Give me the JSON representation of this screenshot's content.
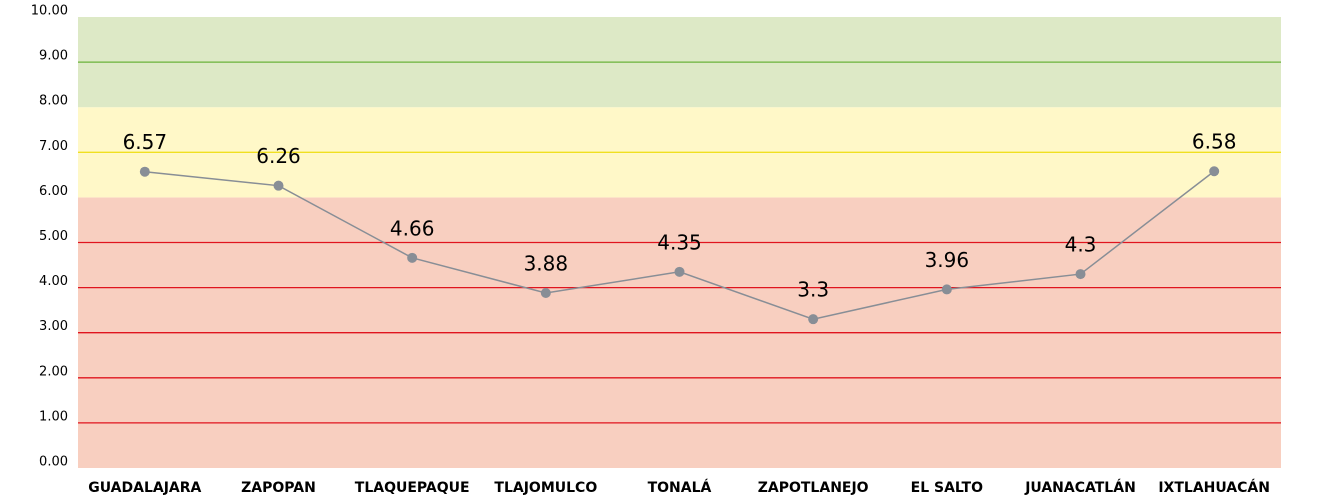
{
  "chart_data": {
    "type": "line",
    "categories": [
      "GUADALAJARA",
      "ZAPOPAN",
      "TLAQUEPAQUE",
      "TLAJOMULCO",
      "TONALÁ",
      "ZAPOTLANEJO",
      "EL SALTO",
      "JUANACATLÁN",
      "IXTLAHUACÁN"
    ],
    "values": [
      6.57,
      6.26,
      4.66,
      3.88,
      4.35,
      3.3,
      3.96,
      4.3,
      6.58
    ],
    "color": "#888e96",
    "ylim": [
      0,
      10
    ],
    "yticks": [
      {
        "value": 0,
        "label": "0.00"
      },
      {
        "value": 1,
        "label": "1.00"
      },
      {
        "value": 2,
        "label": "2.00"
      },
      {
        "value": 3,
        "label": "3.00"
      },
      {
        "value": 4,
        "label": "4.00"
      },
      {
        "value": 5,
        "label": "5.00"
      },
      {
        "value": 6,
        "label": "6.00"
      },
      {
        "value": 7,
        "label": "7.00"
      },
      {
        "value": 8,
        "label": "8.00"
      },
      {
        "value": 9,
        "label": "9.00"
      },
      {
        "value": 10,
        "label": "10.00"
      }
    ],
    "grid": true,
    "bands": [
      {
        "from": 0,
        "to": 6,
        "color": "#f8cfc0",
        "line": "#e0141e"
      },
      {
        "from": 6,
        "to": 8,
        "color": "#fff8c8",
        "line": "#f0e020"
      },
      {
        "from": 8,
        "to": 10,
        "color": "#dde9c6",
        "line": "#6ab23a"
      }
    ]
  }
}
